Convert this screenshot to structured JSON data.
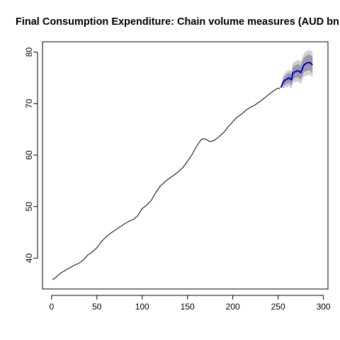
{
  "chart_data": {
    "type": "line",
    "title": "Final Consumption Expenditure: Chain volume measures (AUD bn",
    "xlabel": "",
    "ylabel": "",
    "xlim": [
      -10,
      305
    ],
    "ylim": [
      34,
      82
    ],
    "xticks": [
      0,
      50,
      100,
      150,
      200,
      250,
      300
    ],
    "yticks": [
      40,
      50,
      60,
      70,
      80
    ],
    "grid": false,
    "legend": "none",
    "colors": {
      "history": "#000000",
      "forecast": "#0000cc",
      "band80": "#9a9aa8",
      "band95": "#cfcfd6"
    },
    "series": [
      {
        "role": "history",
        "x": [
          1,
          5,
          10,
          15,
          20,
          25,
          30,
          35,
          40,
          45,
          50,
          55,
          60,
          65,
          70,
          75,
          80,
          85,
          90,
          95,
          100,
          105,
          110,
          115,
          120,
          125,
          130,
          135,
          140,
          145,
          150,
          155,
          160,
          165,
          168,
          171,
          175,
          180,
          185,
          190,
          195,
          200,
          205,
          210,
          215,
          220,
          225,
          230,
          235,
          240,
          245,
          250,
          252
        ],
        "y": [
          35.8,
          36.3,
          37.1,
          37.6,
          38.1,
          38.6,
          39.0,
          39.6,
          40.6,
          41.2,
          42.0,
          43.2,
          44.1,
          44.8,
          45.4,
          46.0,
          46.6,
          47.1,
          47.5,
          48.2,
          49.6,
          50.3,
          51.2,
          52.7,
          54.0,
          54.8,
          55.5,
          56.1,
          56.8,
          57.6,
          58.8,
          60.1,
          61.7,
          63.0,
          63.2,
          63.0,
          62.6,
          62.9,
          63.6,
          64.4,
          65.5,
          66.5,
          67.4,
          68.0,
          68.8,
          69.3,
          69.8,
          70.4,
          71.1,
          71.8,
          72.5,
          73.0,
          73.0
        ]
      },
      {
        "role": "forecast",
        "x": [
          253,
          256,
          259,
          262,
          265,
          266,
          269,
          272,
          275,
          278,
          279,
          282,
          285,
          288
        ],
        "y": [
          73.1,
          74.3,
          74.7,
          75.0,
          74.6,
          75.9,
          76.2,
          76.4,
          76.0,
          77.3,
          77.6,
          77.9,
          78.0,
          77.5
        ],
        "lo80": [
          73.1,
          73.5,
          73.8,
          74.0,
          73.5,
          74.7,
          75.0,
          75.1,
          74.6,
          75.9,
          76.2,
          76.4,
          76.5,
          75.9
        ],
        "hi80": [
          73.1,
          75.1,
          75.6,
          76.0,
          75.7,
          77.1,
          77.4,
          77.7,
          77.4,
          78.7,
          79.0,
          79.4,
          79.5,
          79.1
        ],
        "lo95": [
          73.1,
          73.0,
          73.2,
          73.4,
          72.9,
          74.0,
          74.2,
          74.3,
          73.8,
          75.1,
          75.3,
          75.5,
          75.6,
          75.0
        ],
        "hi95": [
          73.1,
          75.6,
          76.2,
          76.6,
          76.3,
          77.8,
          78.2,
          78.5,
          78.2,
          79.5,
          79.9,
          80.3,
          80.4,
          80.0
        ]
      }
    ]
  }
}
